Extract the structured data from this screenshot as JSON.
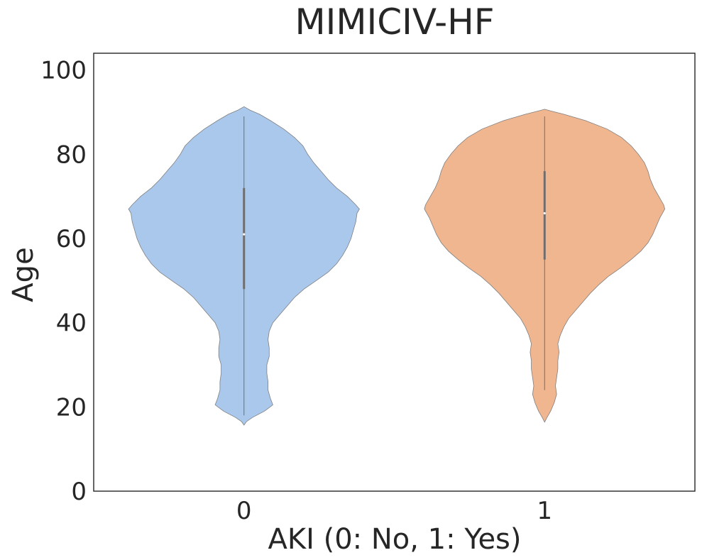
{
  "chart_data": {
    "type": "violin",
    "title": "MIMICIV-HF",
    "xlabel": "AKI (0: No, 1: Yes)",
    "ylabel": "Age",
    "ylim": [
      0,
      104
    ],
    "yticks": [
      0,
      20,
      40,
      60,
      80,
      100
    ],
    "categories": [
      "0",
      "1"
    ],
    "grid": false,
    "legend": "none",
    "colors": {
      "violin_0": "#aac8ec",
      "violin_1": "#f0b690",
      "outline": "#7f7f7f",
      "box": "#6e6e6e",
      "axes": "#262626"
    },
    "violins": [
      {
        "category": "0",
        "color_key": "violin_0",
        "range": [
          15.7,
          91.3
        ],
        "whisker": [
          18,
          89
        ],
        "box": [
          48,
          72
        ],
        "median": 61,
        "density_profile": [
          [
            15.7,
            0.0
          ],
          [
            16.5,
            0.02
          ],
          [
            17.5,
            0.07
          ],
          [
            19,
            0.17
          ],
          [
            20.5,
            0.24
          ],
          [
            22,
            0.22
          ],
          [
            24,
            0.2
          ],
          [
            26,
            0.2
          ],
          [
            28,
            0.19
          ],
          [
            30,
            0.19
          ],
          [
            32,
            0.21
          ],
          [
            34,
            0.21
          ],
          [
            36,
            0.2
          ],
          [
            38,
            0.21
          ],
          [
            40,
            0.24
          ],
          [
            42,
            0.3
          ],
          [
            44,
            0.36
          ],
          [
            46,
            0.42
          ],
          [
            48,
            0.5
          ],
          [
            50,
            0.6
          ],
          [
            52,
            0.7
          ],
          [
            54,
            0.77
          ],
          [
            56,
            0.82
          ],
          [
            58,
            0.86
          ],
          [
            60,
            0.89
          ],
          [
            62,
            0.91
          ],
          [
            64,
            0.93
          ],
          [
            66,
            0.94
          ],
          [
            67,
            0.96
          ],
          [
            68,
            0.93
          ],
          [
            70,
            0.86
          ],
          [
            72,
            0.77
          ],
          [
            74,
            0.7
          ],
          [
            76,
            0.64
          ],
          [
            78,
            0.58
          ],
          [
            80,
            0.53
          ],
          [
            82,
            0.49
          ],
          [
            84,
            0.42
          ],
          [
            86,
            0.33
          ],
          [
            88,
            0.22
          ],
          [
            89.5,
            0.13
          ],
          [
            90.5,
            0.05
          ],
          [
            91.3,
            0.0
          ]
        ]
      },
      {
        "category": "1",
        "color_key": "violin_1",
        "range": [
          16.4,
          90.7
        ],
        "whisker": [
          24,
          89
        ],
        "box": [
          55,
          76
        ],
        "median": 66,
        "density_profile": [
          [
            16.4,
            0.0
          ],
          [
            17.5,
            0.02
          ],
          [
            19,
            0.05
          ],
          [
            21,
            0.08
          ],
          [
            23,
            0.1
          ],
          [
            25,
            0.09
          ],
          [
            27,
            0.1
          ],
          [
            29,
            0.11
          ],
          [
            31,
            0.11
          ],
          [
            33,
            0.12
          ],
          [
            35,
            0.11
          ],
          [
            37,
            0.13
          ],
          [
            39,
            0.16
          ],
          [
            41,
            0.2
          ],
          [
            43,
            0.26
          ],
          [
            45,
            0.32
          ],
          [
            47,
            0.38
          ],
          [
            49,
            0.45
          ],
          [
            51,
            0.53
          ],
          [
            53,
            0.63
          ],
          [
            55,
            0.72
          ],
          [
            57,
            0.8
          ],
          [
            59,
            0.86
          ],
          [
            61,
            0.9
          ],
          [
            63,
            0.93
          ],
          [
            65,
            0.96
          ],
          [
            66,
            0.98
          ],
          [
            67,
            1.0
          ],
          [
            68,
            0.99
          ],
          [
            70,
            0.95
          ],
          [
            72,
            0.91
          ],
          [
            74,
            0.88
          ],
          [
            76,
            0.86
          ],
          [
            78,
            0.83
          ],
          [
            80,
            0.78
          ],
          [
            82,
            0.72
          ],
          [
            84,
            0.64
          ],
          [
            86,
            0.52
          ],
          [
            88,
            0.34
          ],
          [
            89.5,
            0.16
          ],
          [
            90.3,
            0.05
          ],
          [
            90.7,
            0.0
          ]
        ]
      }
    ]
  }
}
